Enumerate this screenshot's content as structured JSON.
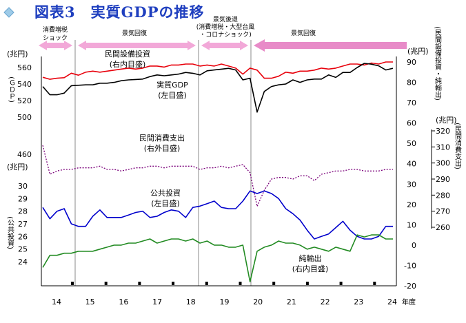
{
  "page_title": "図表3　実質GDPの推移",
  "phases": [
    {
      "label": "消費増税\nショック"
    },
    {
      "label": "景気回復"
    },
    {
      "label": "景気後退\n(消費増税・大型台風\n・コロナショック)"
    },
    {
      "label": "景気回復"
    }
  ],
  "chart_data": {
    "type": "line",
    "title": "図表3　実質GDPの推移",
    "x_axis": {
      "label": "年度",
      "ticks": [
        "14",
        "15",
        "16",
        "17",
        "18",
        "19",
        "20",
        "21",
        "22",
        "23",
        "24"
      ]
    },
    "axes": {
      "left_gdp": {
        "label": "(ＧＤＰ)",
        "unit": "(兆円)",
        "range": [
          500,
          560
        ],
        "ticks": [
          500,
          520,
          540,
          560
        ],
        "extra_tick": 460
      },
      "left_public": {
        "label": "(公共投資)",
        "unit": "(兆円)",
        "range": [
          24,
          30
        ],
        "ticks": [
          24,
          25,
          26,
          27,
          28,
          29,
          30
        ]
      },
      "right_inner": {
        "label": "(民間設備投資・純輸出)",
        "unit": "(兆円)",
        "range": [
          -20,
          90
        ],
        "ticks": [
          -20,
          -10,
          0,
          10,
          20,
          30,
          40,
          50,
          60,
          70,
          80,
          90
        ]
      },
      "right_outer": {
        "label": "(民間消費支出)",
        "unit": "(兆円)",
        "range": [
          260,
          320
        ],
        "ticks": [
          260,
          270,
          280,
          290,
          300,
          310,
          320
        ]
      }
    },
    "series": [
      {
        "name": "民間設備投資\n(右内目盛)",
        "color": "#e8000b",
        "style": "solid",
        "axis": "right_inner",
        "values": [
          82.5,
          81.5,
          82,
          82.3,
          84.5,
          83.5,
          85,
          85.5,
          85,
          85.5,
          86,
          86.5,
          87,
          86.5,
          87,
          88,
          88,
          87.5,
          88.5,
          88.5,
          89,
          89,
          88,
          88.5,
          88,
          89,
          88,
          87,
          84,
          87,
          86,
          82,
          82,
          83,
          85,
          84.5,
          85.5,
          85.5,
          86,
          87,
          86.5,
          87,
          88,
          89,
          89,
          88.5,
          89.5,
          89,
          90,
          90
        ]
      },
      {
        "name": "実質GDP\n(左目盛)",
        "color": "#000000",
        "style": "solid",
        "axis": "left_gdp",
        "values": [
          537,
          527,
          527,
          529,
          538,
          538.5,
          539,
          539,
          541,
          541,
          542,
          544,
          545,
          545.5,
          546,
          549,
          551,
          550,
          551,
          552,
          554,
          553,
          551,
          556,
          557,
          558,
          559,
          557,
          545,
          547,
          506,
          531,
          537,
          539,
          540,
          545,
          542,
          545,
          546,
          546,
          551,
          548,
          554,
          554,
          560,
          565,
          564,
          562,
          557,
          559
        ]
      },
      {
        "name": "民間消費支出\n(右外目盛)",
        "color": "#7a007a",
        "style": "dotted",
        "axis": "right_outer",
        "values": [
          311,
          293,
          295,
          296,
          296,
          297,
          297,
          297,
          298,
          296,
          296,
          295,
          296,
          297,
          297,
          298,
          298,
          297,
          298,
          298,
          298,
          298,
          296,
          297,
          297,
          298,
          297,
          298,
          299,
          294,
          273,
          283,
          290,
          291,
          291,
          290,
          292,
          292,
          289,
          293,
          294,
          295,
          295,
          296,
          296,
          295,
          295,
          295,
          296,
          296
        ]
      },
      {
        "name": "公共投資\n(左目盛)",
        "color": "#0000cc",
        "style": "solid",
        "axis": "left_public",
        "values": [
          28.3,
          27.4,
          28.0,
          28.2,
          27.0,
          26.8,
          26.8,
          27.6,
          28.1,
          27.5,
          27.5,
          27.5,
          27.7,
          27.9,
          28.0,
          27.5,
          27.6,
          27.9,
          28.1,
          28.0,
          27.5,
          28.3,
          28.4,
          28.6,
          28.8,
          28.3,
          28.2,
          28.2,
          28.8,
          29.6,
          29.4,
          29.6,
          29.4,
          29.0,
          28.2,
          27.8,
          27.3,
          26.5,
          25.8,
          26.0,
          26.2,
          26.7,
          27.2,
          26.5,
          26.0,
          25.8,
          25.8,
          26.0,
          26.8,
          26.8
        ]
      },
      {
        "name": "純輸出\n(右内目盛)",
        "color": "#228b22",
        "style": "solid",
        "axis": "right_inner",
        "values": [
          -11,
          -5,
          -5,
          -4,
          -4,
          -3,
          -3,
          -3,
          -2,
          -1,
          0,
          0,
          1,
          1,
          2,
          3,
          1,
          2,
          3,
          3,
          2,
          3,
          1,
          2,
          0,
          0,
          -1,
          -1,
          0,
          -18,
          -3,
          -1,
          0,
          2,
          1,
          1,
          0,
          -2,
          -1,
          -2,
          -3,
          -1,
          -2,
          -3,
          5,
          4,
          5,
          5,
          3,
          3
        ]
      }
    ],
    "annotations": [
      {
        "text": "民間設備投資\n(右内目盛)"
      },
      {
        "text": "実質GDP\n(左目盛)"
      },
      {
        "text": "民間消費支出\n(右外目盛)"
      },
      {
        "text": "公共投資\n(左目盛)"
      },
      {
        "text": "純輸出\n(右内目盛)"
      }
    ],
    "legend": "none"
  }
}
